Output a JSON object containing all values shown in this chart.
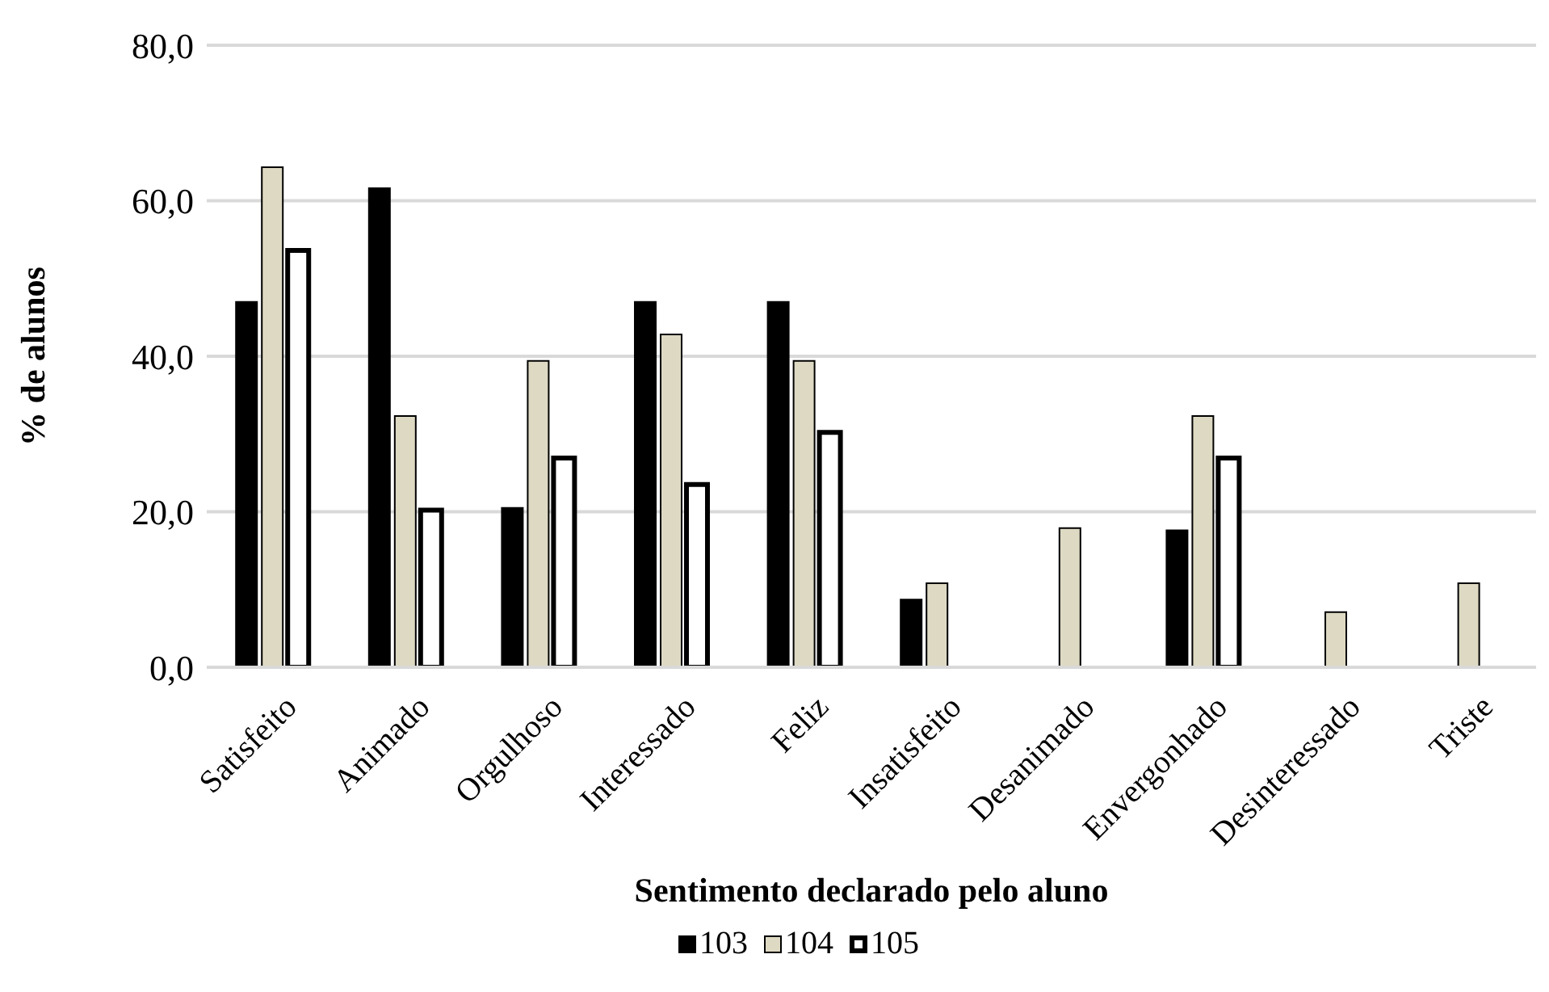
{
  "chart_data": {
    "type": "bar",
    "xlabel": "Sentimento declarado pelo aluno",
    "ylabel": "% de alunos",
    "categories": [
      "Satisfeito",
      "Animado",
      "Orgulhoso",
      "Interessado",
      "Feliz",
      "Insatisfeito",
      "Desanimado",
      "Envergonhado",
      "Desinteressado",
      "Triste"
    ],
    "series": [
      {
        "name": "103",
        "color": "#000000",
        "values": [
          47.0,
          61.6,
          20.5,
          47.0,
          47.0,
          8.7,
          null,
          17.6,
          null,
          null
        ]
      },
      {
        "name": "104",
        "color": "#ddd9c3",
        "values": [
          64.3,
          32.3,
          39.4,
          42.8,
          39.4,
          10.8,
          17.9,
          32.3,
          7.1,
          10.8
        ]
      },
      {
        "name": "105",
        "color": "#ffffff",
        "values": [
          53.6,
          20.2,
          26.9,
          23.5,
          30.2,
          null,
          null,
          26.9,
          null,
          null
        ]
      }
    ],
    "ylim": [
      0,
      80
    ],
    "yticks": [
      {
        "value": 0,
        "label": "0,0"
      },
      {
        "value": 20,
        "label": "20,0"
      },
      {
        "value": 40,
        "label": "40,0"
      },
      {
        "value": 60,
        "label": "60,0"
      },
      {
        "value": 80,
        "label": "80,0"
      }
    ],
    "grid": "y",
    "legend": "bottom"
  }
}
